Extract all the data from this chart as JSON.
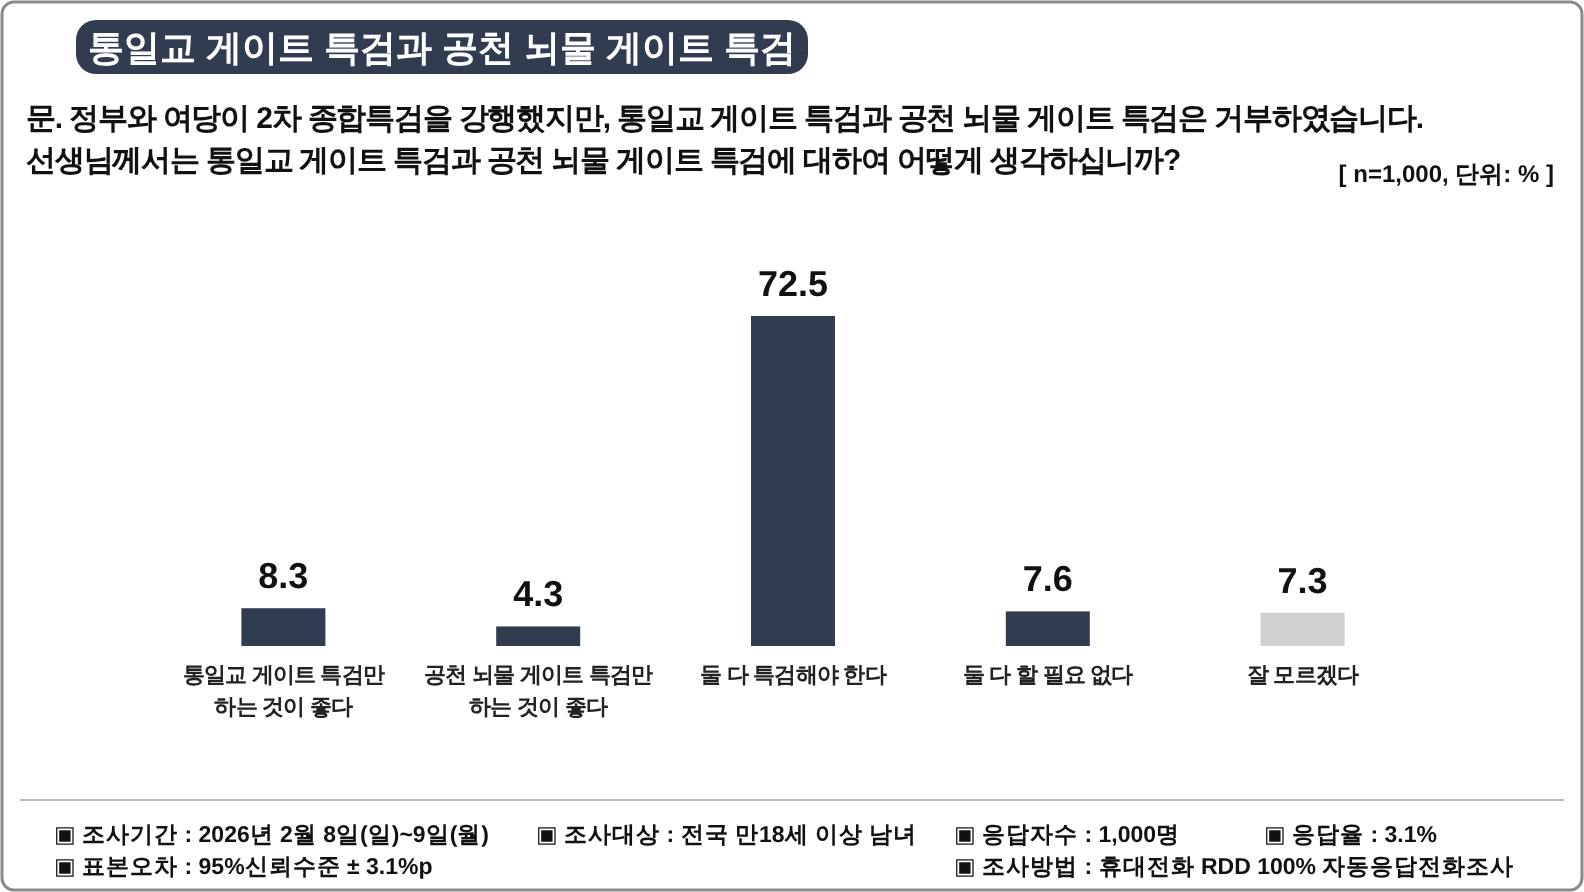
{
  "chart_data": {
    "type": "bar",
    "title": "통일교 게이트 특검과 공천 뇌물 게이트 특검",
    "subtitle": "문. 정부와 여당이 2차 종합특검을 강행했지만, 통일교 게이트 특검과 공천 뇌물 게이트 특검은 거부하였습니다.\n선생님께서는 통일교 게이트 특검과 공천 뇌물 게이트 특검에 대하여 어떻게 생각하십니까?",
    "categories": [
      "통일교 게이트 특검만\n하는 것이 좋다",
      "공천 뇌물 게이트 특검만\n하는 것이 좋다",
      "둘 다 특검해야 한다",
      "둘 다 할 필요 없다",
      "잘 모르겠다"
    ],
    "values": [
      8.3,
      4.3,
      72.5,
      7.6,
      7.3
    ],
    "colors": [
      "#323c50",
      "#323c50",
      "#323c50",
      "#323c50",
      "#d0d0d0"
    ],
    "data_labels": true,
    "annotations": [
      "[ n=1,000, 단위: % ]",
      "▣ 조사기간 : 2026년 2월 8일(일)~9일(월)",
      "▣ 조사대상 : 전국 만18세 이상 남녀",
      "▣ 응답자수 : 1,000명",
      "▣ 응답율 : 3.1%",
      "▣ 표본오차 : 95%신뢰수준 ± 3.1%p",
      "▣ 조사방법 : 휴대전화 RDD 100% 자동응답전화조사"
    ]
  }
}
